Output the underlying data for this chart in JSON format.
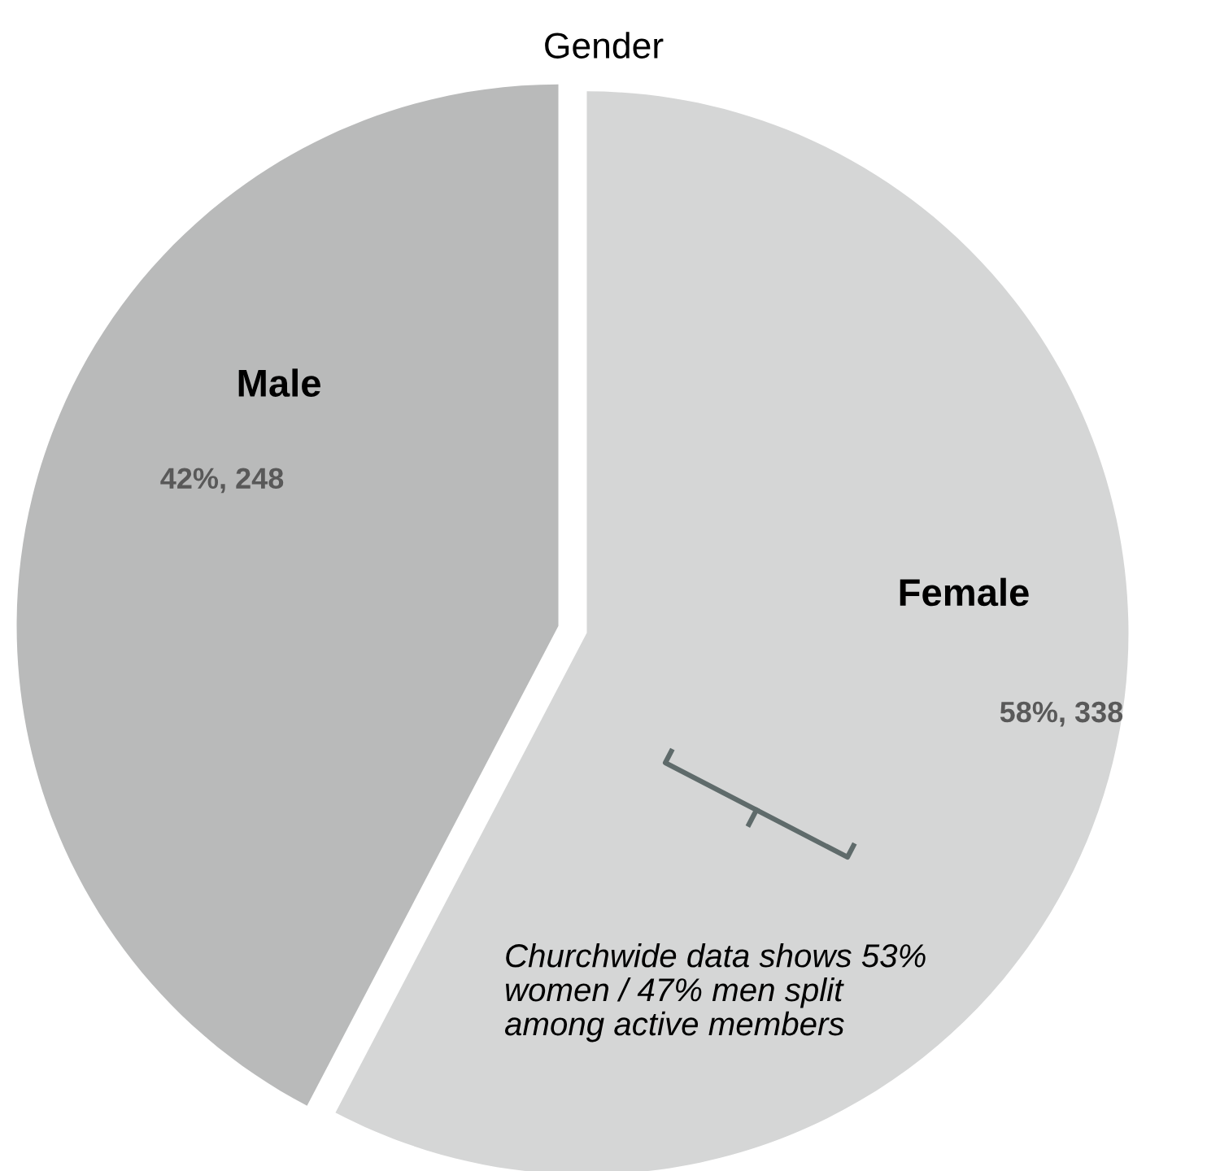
{
  "chart_data": {
    "type": "pie",
    "title": "Gender",
    "categories": [
      "Male",
      "Female"
    ],
    "values": [
      248,
      338
    ],
    "colors": [
      "#b9baba",
      "#d5d6d6"
    ],
    "value_labels": [
      "42%, 248",
      "58%, 338"
    ],
    "annotations": [
      "Churchwide data shows 53%\nwomen / 47% men split\namong active members"
    ]
  }
}
